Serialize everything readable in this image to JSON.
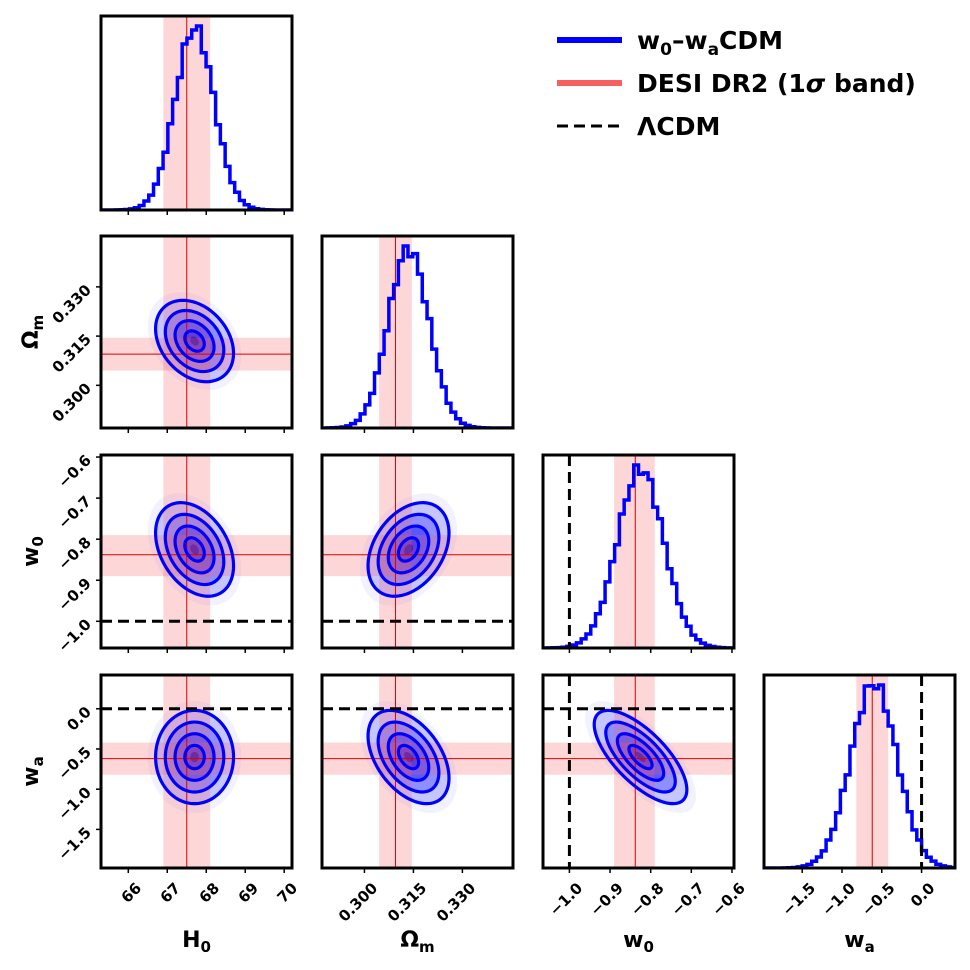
{
  "chart_data": {
    "type": "corner",
    "title": "",
    "parameters": [
      {
        "name": "H_0",
        "label_main": "H",
        "label_sub": "0",
        "range": [
          65.3,
          70.2
        ],
        "ticks": [
          66,
          67,
          68,
          69,
          70
        ],
        "tick_labels": [
          "66",
          "67",
          "68",
          "69",
          "70"
        ]
      },
      {
        "name": "Omega_m",
        "label_main": "Ω",
        "label_sub": "m",
        "range": [
          0.287,
          0.3455
        ],
        "ticks": [
          0.3,
          0.315,
          0.33
        ],
        "tick_labels": [
          "0.300",
          "0.315",
          "0.330"
        ]
      },
      {
        "name": "w_0",
        "label_main": "w",
        "label_sub": "0",
        "range": [
          -1.065,
          -0.595
        ],
        "ticks": [
          -1.0,
          -0.9,
          -0.8,
          -0.7,
          -0.6
        ],
        "tick_labels": [
          "−1.0",
          "−0.9",
          "−0.8",
          "−0.7",
          "−0.6"
        ]
      },
      {
        "name": "w_a",
        "label_main": "w",
        "label_sub": "a",
        "range": [
          -1.98,
          0.42
        ],
        "ticks": [
          -1.5,
          -1.0,
          -0.5,
          0.0
        ],
        "tick_labels": [
          "−1.5",
          "−1.0",
          "−0.5",
          "0.0"
        ]
      }
    ],
    "posterior": {
      "name": "w0–waCDM",
      "color": "#0000ff",
      "mean": [
        67.7,
        0.3135,
        -0.825,
        -0.6
      ],
      "sigma": [
        0.5,
        0.0062,
        0.057,
        0.29
      ],
      "correlation": [
        [
          1.0,
          -0.3,
          -0.35,
          0.0
        ],
        [
          -0.3,
          1.0,
          0.35,
          -0.45
        ],
        [
          -0.35,
          0.35,
          1.0,
          -0.7
        ],
        [
          0.0,
          -0.45,
          -0.7,
          1.0
        ]
      ],
      "contour_levels_sigma": [
        0.5,
        1.0,
        1.5,
        2.0
      ]
    },
    "reference_band": {
      "name": "DESI DR2 (1σ band)",
      "color": "#f86060",
      "central": [
        67.5,
        0.3095,
        -0.838,
        -0.62
      ],
      "low": [
        66.9,
        0.3045,
        -0.89,
        -0.82
      ],
      "high": [
        68.1,
        0.3145,
        -0.79,
        -0.42
      ]
    },
    "lcdm": {
      "name": "ΛCDM",
      "color": "#000000",
      "w0": -1.0,
      "wa": 0.0
    },
    "legend": {
      "placement": "top-right",
      "entries": [
        {
          "main": "w",
          "sub1": "0",
          "mid": "–w",
          "sub2": "a",
          "tail": "CDM",
          "color": "#0000ff",
          "style": "solid"
        },
        {
          "main": "DESI DR2 (1",
          "greek": "σ",
          "tail": " band)",
          "color": "#f86060",
          "style": "solid"
        },
        {
          "main": "ΛCDM",
          "color": "#000000",
          "style": "dashed"
        }
      ]
    }
  }
}
